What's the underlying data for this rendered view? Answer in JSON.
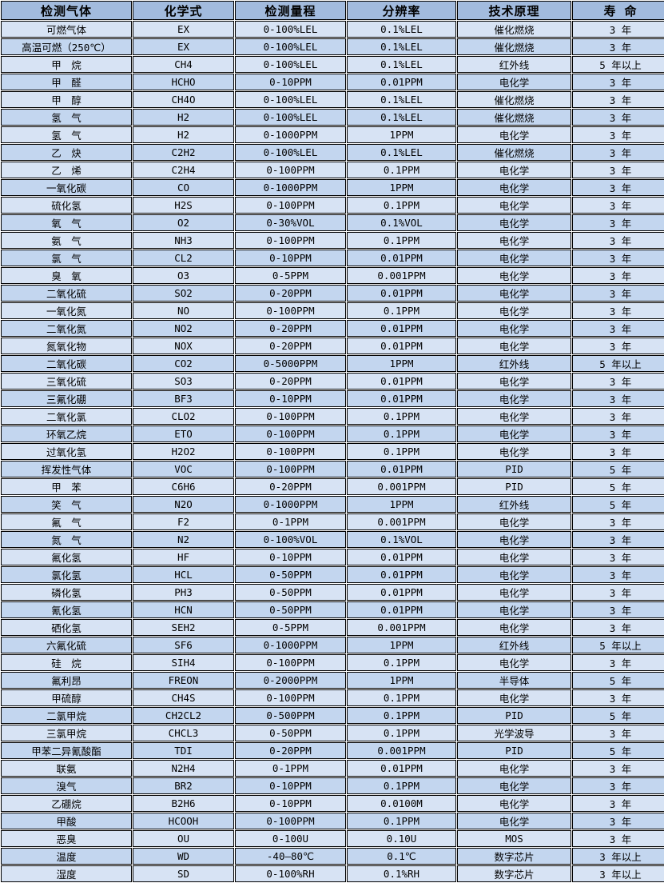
{
  "colors": {
    "page_bg": "#ffffff",
    "header_bg": "#a2bbde",
    "row_light": "#d7e3f4",
    "row_dark": "#c3d6ef",
    "border": "#000000",
    "text": "#000000"
  },
  "table": {
    "headers": [
      "检测气体",
      "化学式",
      "检测量程",
      "分辨率",
      "技术原理",
      "寿 命"
    ],
    "rows": [
      [
        "可燃气体",
        "EX",
        "0-100%LEL",
        "0.1%LEL",
        "催化燃烧",
        "3 年"
      ],
      [
        "高温可燃（250℃）",
        "EX",
        "0-100%LEL",
        "0.1%LEL",
        "催化燃烧",
        "3 年"
      ],
      [
        "甲　烷",
        "CH4",
        "0-100%LEL",
        "0.1%LEL",
        "红外线",
        "5 年以上"
      ],
      [
        "甲　醛",
        "HCHO",
        "0-10PPM",
        "0.01PPM",
        "电化学",
        "3 年"
      ],
      [
        "甲　醇",
        "CH4O",
        "0-100%LEL",
        "0.1%LEL",
        "催化燃烧",
        "3 年"
      ],
      [
        "氢　气",
        "H2",
        "0-100%LEL",
        "0.1%LEL",
        "催化燃烧",
        "3 年"
      ],
      [
        "氢　气",
        "H2",
        "0-1000PPM",
        "1PPM",
        "电化学",
        "3 年"
      ],
      [
        "乙　炔",
        "C2H2",
        "0-100%LEL",
        "0.1%LEL",
        "催化燃烧",
        "3 年"
      ],
      [
        "乙　烯",
        "C2H4",
        "0-100PPM",
        "0.1PPM",
        "电化学",
        "3 年"
      ],
      [
        "一氧化碳",
        "CO",
        "0-1000PPM",
        "1PPM",
        "电化学",
        "3 年"
      ],
      [
        "硫化氢",
        "H2S",
        "0-100PPM",
        "0.1PPM",
        "电化学",
        "3 年"
      ],
      [
        "氧　气",
        "O2",
        "0-30%VOL",
        "0.1%VOL",
        "电化学",
        "3 年"
      ],
      [
        "氨　气",
        "NH3",
        "0-100PPM",
        "0.1PPM",
        "电化学",
        "3 年"
      ],
      [
        "氯　气",
        "CL2",
        "0-10PPM",
        "0.01PPM",
        "电化学",
        "3 年"
      ],
      [
        "臭　氧",
        "O3",
        "0-5PPM",
        "0.001PPM",
        "电化学",
        "3 年"
      ],
      [
        "二氧化硫",
        "SO2",
        "0-20PPM",
        "0.01PPM",
        "电化学",
        "3 年"
      ],
      [
        "一氧化氮",
        "NO",
        "0-100PPM",
        "0.1PPM",
        "电化学",
        "3 年"
      ],
      [
        "二氧化氮",
        "NO2",
        "0-20PPM",
        "0.01PPM",
        "电化学",
        "3 年"
      ],
      [
        "氮氧化物",
        "NOX",
        "0-20PPM",
        "0.01PPM",
        "电化学",
        "3 年"
      ],
      [
        "二氧化碳",
        "CO2",
        "0-5000PPM",
        "1PPM",
        "红外线",
        "5 年以上"
      ],
      [
        "三氧化硫",
        "SO3",
        "0-20PPM",
        "0.01PPM",
        "电化学",
        "3 年"
      ],
      [
        "三氟化硼",
        "BF3",
        "0-10PPM",
        "0.01PPM",
        "电化学",
        "3 年"
      ],
      [
        "二氧化氯",
        "CLO2",
        "0-100PPM",
        "0.1PPM",
        "电化学",
        "3 年"
      ],
      [
        "环氧乙烷",
        "ETO",
        "0-100PPM",
        "0.1PPM",
        "电化学",
        "3 年"
      ],
      [
        "过氧化氢",
        "H2O2",
        "0-100PPM",
        "0.1PPM",
        "电化学",
        "3 年"
      ],
      [
        "挥发性气体",
        "VOC",
        "0-100PPM",
        "0.01PPM",
        "PID",
        "5 年"
      ],
      [
        "甲　苯",
        "C6H6",
        "0-20PPM",
        "0.001PPM",
        "PID",
        "5 年"
      ],
      [
        "笑　气",
        "N2O",
        "0-1000PPM",
        "1PPM",
        "红外线",
        "5 年"
      ],
      [
        "氟　气",
        "F2",
        "0-1PPM",
        "0.001PPM",
        "电化学",
        "3 年"
      ],
      [
        "氮　气",
        "N2",
        "0-100%VOL",
        "0.1%VOL",
        "电化学",
        "3 年"
      ],
      [
        "氟化氢",
        "HF",
        "0-10PPM",
        "0.01PPM",
        "电化学",
        "3 年"
      ],
      [
        "氯化氢",
        "HCL",
        "0-50PPM",
        "0.01PPM",
        "电化学",
        "3 年"
      ],
      [
        "磷化氢",
        "PH3",
        "0-50PPM",
        "0.01PPM",
        "电化学",
        "3 年"
      ],
      [
        "氰化氢",
        "HCN",
        "0-50PPM",
        "0.01PPM",
        "电化学",
        "3 年"
      ],
      [
        "硒化氢",
        "SEH2",
        "0-5PPM",
        "0.001PPM",
        "电化学",
        "3 年"
      ],
      [
        "六氟化硫",
        "SF6",
        "0-1000PPM",
        "1PPM",
        "红外线",
        "5 年以上"
      ],
      [
        "硅　烷",
        "SIH4",
        "0-100PPM",
        "0.1PPM",
        "电化学",
        "3 年"
      ],
      [
        "氟利昂",
        "FREON",
        "0-2000PPM",
        "1PPM",
        "半导体",
        "5 年"
      ],
      [
        "甲硫醇",
        "CH4S",
        "0-100PPM",
        "0.1PPM",
        "电化学",
        "3 年"
      ],
      [
        "二氯甲烷",
        "CH2CL2",
        "0-500PPM",
        "0.1PPM",
        "PID",
        "5 年"
      ],
      [
        "三氯甲烷",
        "CHCL3",
        "0-50PPM",
        "0.1PPM",
        "光学波导",
        "3 年"
      ],
      [
        "甲苯二异氰酸酯",
        "TDI",
        "0-20PPM",
        "0.001PPM",
        "PID",
        "5 年"
      ],
      [
        "联氨",
        "N2H4",
        "0-1PPM",
        "0.01PPM",
        "电化学",
        "3 年"
      ],
      [
        "溴气",
        "BR2",
        "0-10PPM",
        "0.1PPM",
        "电化学",
        "3 年"
      ],
      [
        "乙硼烷",
        "B2H6",
        "0-10PPM",
        "0.0100M",
        "电化学",
        "3 年"
      ],
      [
        "甲酸",
        "HCOOH",
        "0-100PPM",
        "0.1PPM",
        "电化学",
        "3 年"
      ],
      [
        "恶臭",
        "OU",
        "0-100U",
        "0.10U",
        "MOS",
        "3 年"
      ],
      [
        "温度",
        "WD",
        "-40—80℃",
        "0.1℃",
        "数字芯片",
        "3 年以上"
      ],
      [
        "湿度",
        "SD",
        "0-100%RH",
        "0.1%RH",
        "数字芯片",
        "3 年以上"
      ]
    ]
  }
}
